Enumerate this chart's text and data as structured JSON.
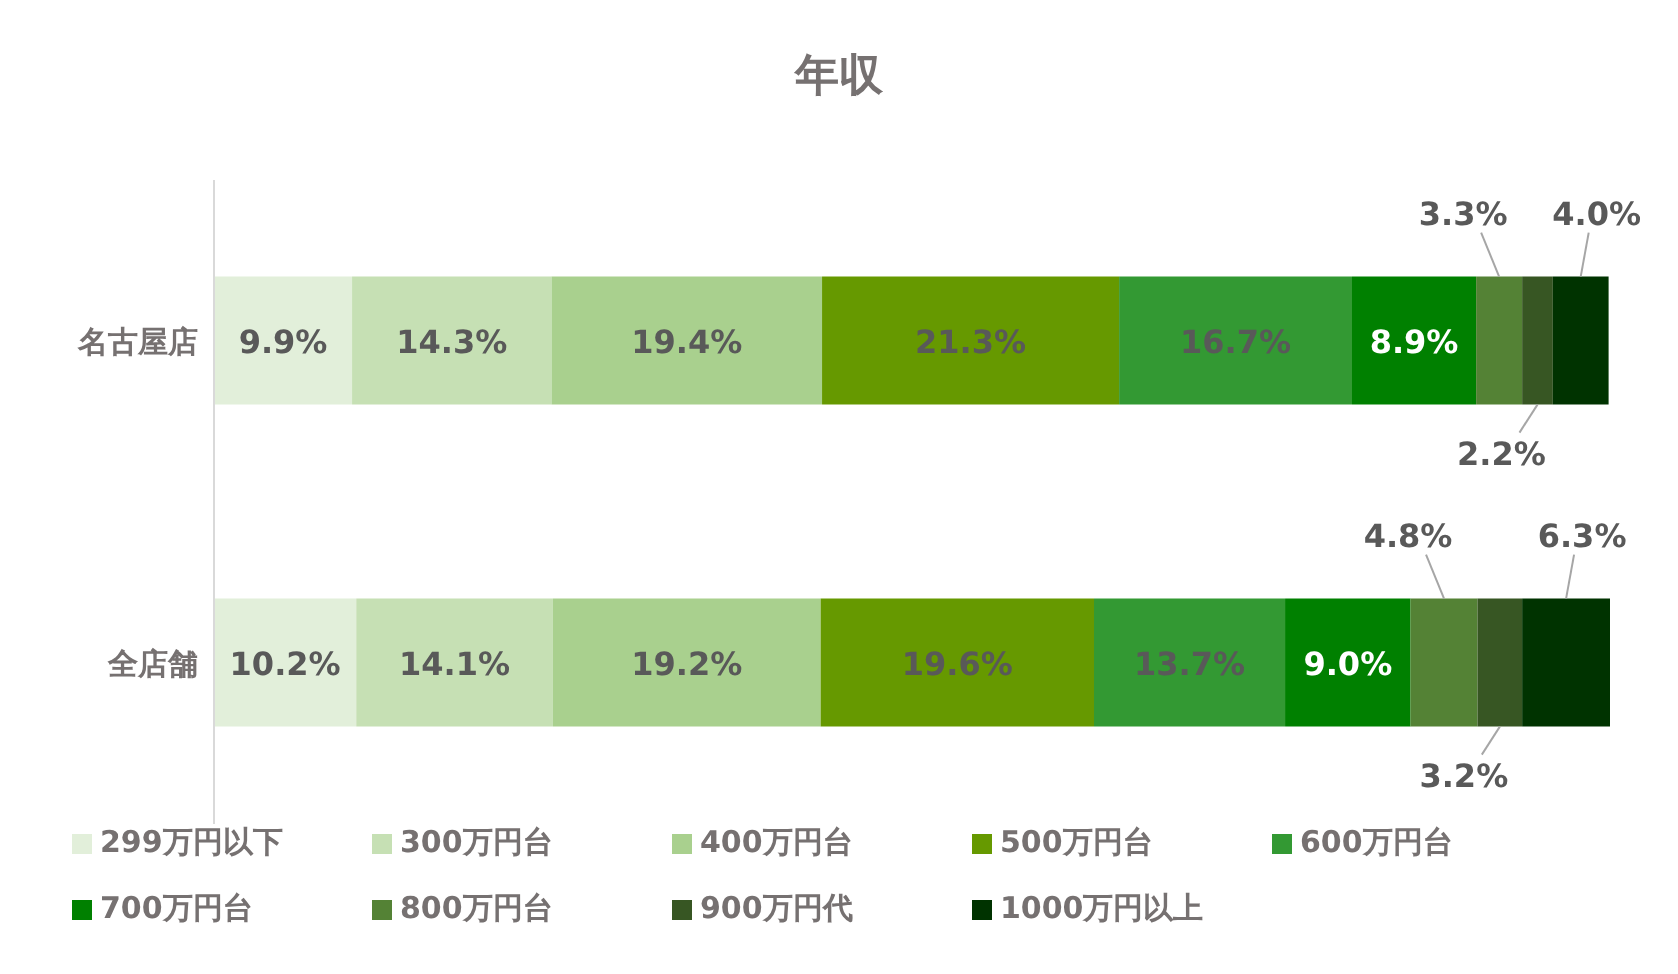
{
  "chart_data": {
    "type": "bar",
    "title": "年収",
    "orientation": "horizontal",
    "stacked": true,
    "legend": "bottom",
    "grid": false,
    "categories": [
      "名古屋店",
      "全店舗"
    ],
    "series": [
      {
        "name": "299万円以下",
        "color": "#e2efda",
        "values": [
          9.9,
          10.2
        ],
        "value_labels": [
          "9.9%",
          "10.2%"
        ]
      },
      {
        "name": "300万円台",
        "color": "#c6e0b4",
        "values": [
          14.3,
          14.1
        ],
        "value_labels": [
          "14.3%",
          "14.1%"
        ]
      },
      {
        "name": "400万円台",
        "color": "#a9d08e",
        "values": [
          19.4,
          19.2
        ],
        "value_labels": [
          "19.4%",
          "19.2%"
        ]
      },
      {
        "name": "500万円台",
        "color": "#669900",
        "values": [
          21.3,
          19.6
        ],
        "value_labels": [
          "21.3%",
          "19.6%"
        ]
      },
      {
        "name": "600万円台",
        "color": "#339933",
        "values": [
          16.7,
          13.7
        ],
        "value_labels": [
          "16.7%",
          "13.7%"
        ]
      },
      {
        "name": "700万円台",
        "color": "#008000",
        "values": [
          8.9,
          9.0
        ],
        "value_labels": [
          "8.9%",
          "9.0%"
        ]
      },
      {
        "name": "800万円台",
        "color": "#548235",
        "values": [
          3.3,
          4.8
        ],
        "value_labels": [
          "3.3%",
          "4.8%"
        ]
      },
      {
        "name": "900万円代",
        "color": "#375623",
        "values": [
          2.2,
          3.2
        ],
        "value_labels": [
          "2.2%",
          "3.2%"
        ]
      },
      {
        "name": "1000万円以上",
        "color": "#003300",
        "values": [
          4.0,
          6.3
        ],
        "value_labels": [
          "4.0%",
          "6.3%"
        ]
      }
    ]
  }
}
